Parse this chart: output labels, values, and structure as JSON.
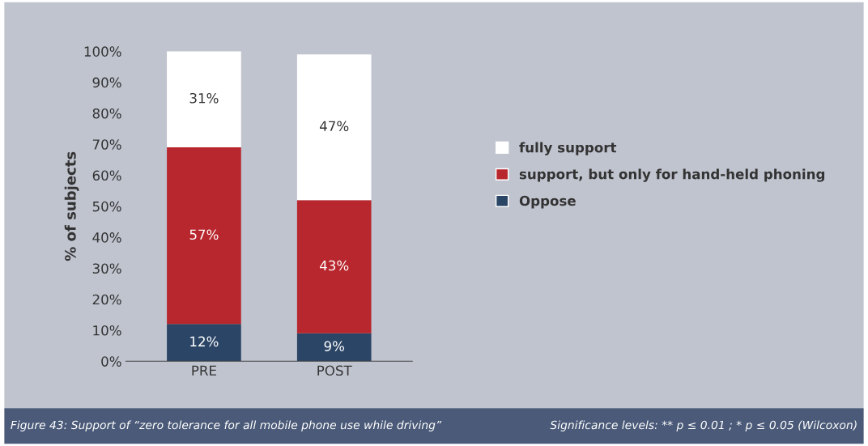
{
  "chart_data": {
    "type": "bar",
    "stacked": true,
    "ylabel": "% of subjects",
    "categories": [
      "PRE",
      "POST"
    ],
    "series": [
      {
        "name": "Oppose",
        "color": "#2b4566",
        "values": [
          12,
          9
        ],
        "value_labels": [
          "12%",
          "9%"
        ]
      },
      {
        "name": "support, but only for hand-held phoning",
        "color": "#b9272e",
        "values": [
          57,
          43
        ],
        "value_labels": [
          "57%",
          "43%"
        ]
      },
      {
        "name": "fully support",
        "color": "#ffffff",
        "values": [
          31,
          47
        ],
        "value_labels": [
          "31%",
          "47%"
        ]
      }
    ],
    "legend": "right",
    "grid": false,
    "ylim": [
      0,
      100
    ],
    "yticks": [
      {
        "value": 0,
        "label": "0%"
      },
      {
        "value": 10,
        "label": "10%"
      },
      {
        "value": 20,
        "label": "20%"
      },
      {
        "value": 30,
        "label": "30%"
      },
      {
        "value": 40,
        "label": "40%"
      },
      {
        "value": 50,
        "label": "50%"
      },
      {
        "value": 60,
        "label": "60%"
      },
      {
        "value": 70,
        "label": "70%"
      },
      {
        "value": 80,
        "label": "80%"
      },
      {
        "value": 90,
        "label": "90%"
      },
      {
        "value": 100,
        "label": "100%"
      }
    ],
    "annotations": [
      "Figure 43: Support of “zero tolerance for all mobile phone use while driving”",
      "Significance levels: ** p ≤ 0.01 ; * p ≤ 0.05 (Wilcoxon)"
    ]
  }
}
